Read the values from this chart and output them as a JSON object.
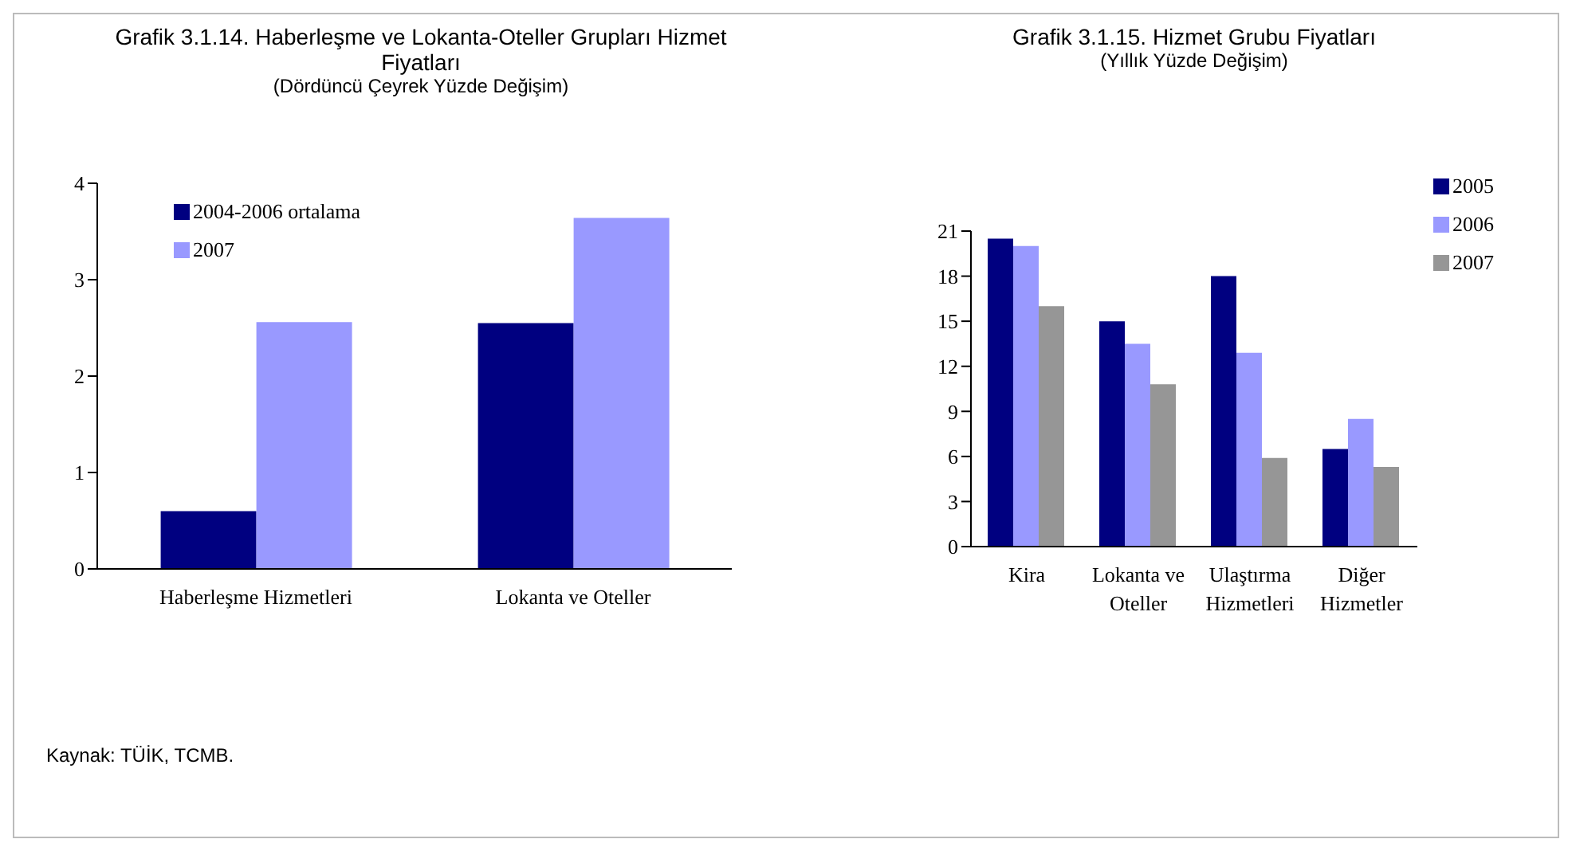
{
  "chart_data": [
    {
      "type": "bar",
      "title": "Grafik 3.1.14. Haberleşme ve Lokanta-Oteller Grupları Hizmet Fiyatları",
      "subtitle": "(Dördüncü Çeyrek Yüzde Değişim)",
      "categories": [
        "Haberleşme Hizmetleri",
        "Lokanta ve Oteller"
      ],
      "series": [
        {
          "name": "2004-2006 ortalama",
          "color": "#000080",
          "values": [
            0.6,
            2.55
          ]
        },
        {
          "name": "2007",
          "color": "#9999ff",
          "values": [
            2.56,
            3.64
          ]
        }
      ],
      "ylim": [
        0,
        4
      ],
      "yticks": [
        0,
        1,
        2,
        3,
        4
      ],
      "grid": false,
      "legend": "top left",
      "annotations": [
        "Kaynak: TÜİK, TCMB."
      ]
    },
    {
      "type": "bar",
      "title": "Grafik 3.1.15. Hizmet Grubu Fiyatları",
      "subtitle": "(Yıllık Yüzde Değişim)",
      "categories": [
        "Kira",
        "Lokanta ve Oteller",
        "Ulaştırma Hizmetleri",
        "Diğer Hizmetler"
      ],
      "series": [
        {
          "name": "2005",
          "color": "#000080",
          "values": [
            20.5,
            15.0,
            18.0,
            6.5
          ]
        },
        {
          "name": "2006",
          "color": "#9999ff",
          "values": [
            20.0,
            13.5,
            12.9,
            8.5
          ]
        },
        {
          "name": "2007",
          "color": "#969696",
          "values": [
            16.0,
            10.8,
            5.9,
            5.3
          ]
        }
      ],
      "ylim": [
        0,
        21
      ],
      "yticks": [
        0,
        3,
        6,
        9,
        12,
        15,
        18,
        21
      ],
      "grid": false,
      "legend": "top right"
    }
  ]
}
